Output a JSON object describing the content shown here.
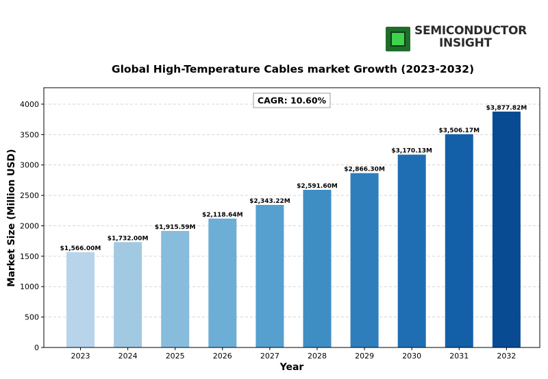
{
  "logo": {
    "line1": "SEMICONDUCTOR",
    "line2": "INSIGHT"
  },
  "chart_data": {
    "type": "bar",
    "title": "Global High-Temperature Cables market Growth (2023-2032)",
    "xlabel": "Year",
    "ylabel": "Market Size (Million USD)",
    "categories": [
      "2023",
      "2024",
      "2025",
      "2026",
      "2027",
      "2028",
      "2029",
      "2030",
      "2031",
      "2032"
    ],
    "values": [
      1566.0,
      1732.0,
      1915.59,
      2118.64,
      2343.22,
      2591.6,
      2866.3,
      3170.13,
      3506.17,
      3877.82
    ],
    "data_labels": [
      "$1,566.00M",
      "$1,732.00M",
      "$1,915.59M",
      "$2,118.64M",
      "$2,343.22M",
      "$2,591.60M",
      "$2,866.30M",
      "$3,170.13M",
      "$3,506.17M",
      "$3,877.82M"
    ],
    "colors": [
      "#b7d4ea",
      "#a1c9e2",
      "#87bcdc",
      "#6caed6",
      "#55a0cf",
      "#3e8ec4",
      "#2e7ebc",
      "#1f6eb3",
      "#1360a8",
      "#084b93"
    ],
    "ylim": [
      0,
      4270
    ],
    "yticks": [
      0,
      500,
      1000,
      1500,
      2000,
      2500,
      3000,
      3500,
      4000
    ],
    "grid": true,
    "annotation": "CAGR: 10.60%"
  }
}
